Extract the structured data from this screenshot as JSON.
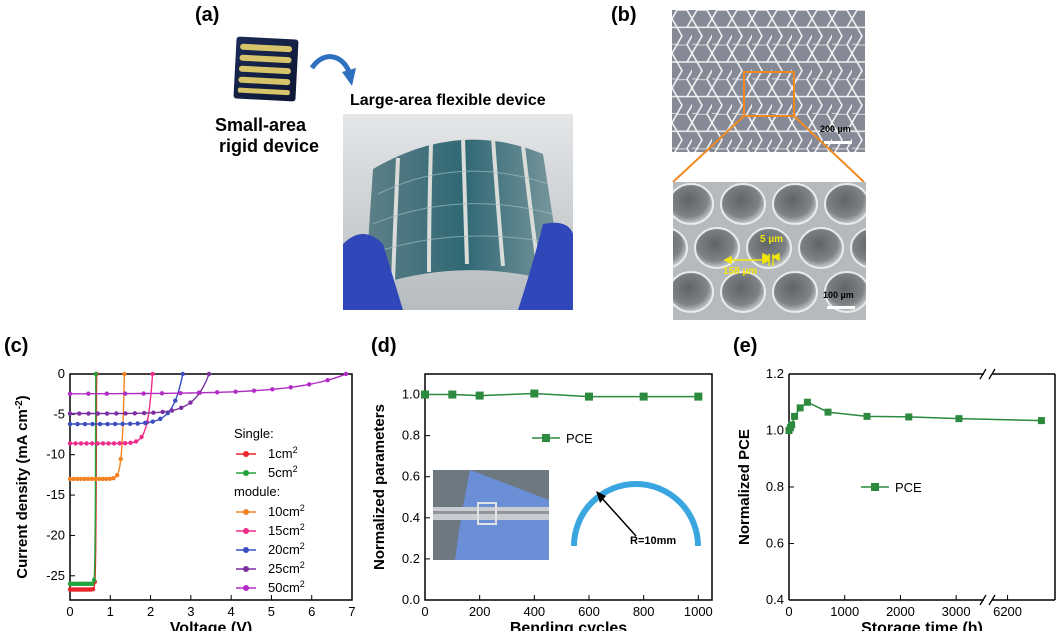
{
  "panels": {
    "a": {
      "label": "(a)",
      "small_caption_line1": "Small-area",
      "small_caption_line2": "rigid device",
      "large_caption": "Large-area flexible device"
    },
    "b": {
      "label": "(b)",
      "scale_top": "200 µm",
      "scale_bottom": "100 µm",
      "dim_gap": "5 µm",
      "dim_pitch": "158 µm"
    },
    "c": {
      "label": "(c)"
    },
    "d": {
      "label": "(d)",
      "radius_label": "R=10mm"
    },
    "e": {
      "label": "(e)"
    }
  },
  "colors": {
    "red": "#e8262b",
    "green": "#22a43a",
    "orange": "#f58220",
    "magenta": "#ee2b8a",
    "blue": "#3a4ec0",
    "purple": "#7b2fa0",
    "violet": "#b12cc4",
    "pce_green": "#2b8a3e",
    "arc_blue": "#3aa6e0"
  },
  "chart_data": [
    {
      "id": "c",
      "type": "line",
      "xlabel": "Voltage (V)",
      "ylabel": "Current density (mA cm",
      "ylabel_sup": "-2",
      "ylabel_close": ")",
      "xlim": [
        0,
        7
      ],
      "ylim": [
        -28,
        0
      ],
      "xticks": [
        0,
        1,
        2,
        3,
        4,
        5,
        6,
        7
      ],
      "yticks": [
        0,
        -5,
        -10,
        -15,
        -20,
        -25
      ],
      "legend_groups": [
        {
          "heading": "Single:",
          "entries": [
            0,
            1
          ]
        },
        {
          "heading": "module:",
          "entries": [
            2,
            3,
            4,
            5,
            6
          ]
        }
      ],
      "series": [
        {
          "name": "1cm",
          "sup": "2",
          "color_key": "red",
          "voc": 0.66,
          "jsc": -26.7,
          "n": 0.05
        },
        {
          "name": "5cm",
          "sup": "2",
          "color_key": "green",
          "voc": 0.64,
          "jsc": -26.0,
          "n": 0.042
        },
        {
          "name": "10cm",
          "sup": "2",
          "color_key": "orange",
          "voc": 1.35,
          "jsc": -13.0,
          "n": 0.1
        },
        {
          "name": "15cm",
          "sup": "2",
          "color_key": "magenta",
          "voc": 2.05,
          "jsc": -8.6,
          "n": 0.14
        },
        {
          "name": "20cm",
          "sup": "2",
          "color_key": "blue",
          "voc": 2.8,
          "jsc": -6.2,
          "n": 0.22
        },
        {
          "name": "25cm",
          "sup": "2",
          "color_key": "purple",
          "voc": 3.45,
          "jsc": -4.9,
          "n": 0.26
        },
        {
          "name": "50cm",
          "sup": "2",
          "color_key": "violet",
          "voc": 6.85,
          "jsc": -2.45,
          "n": 0.45
        }
      ]
    },
    {
      "id": "d",
      "type": "line",
      "xlabel": "Bending cycles",
      "ylabel": "Normalized parameters",
      "xlim": [
        0,
        1050
      ],
      "ylim": [
        0,
        1.1
      ],
      "xticks": [
        0,
        200,
        400,
        600,
        800,
        1000
      ],
      "yticks": [
        0.0,
        0.2,
        0.4,
        0.6,
        0.8,
        1.0
      ],
      "ytick_labels": [
        "0.0",
        "0.2",
        "0.4",
        "0.6",
        "0.8",
        "1.0"
      ],
      "legend_position": "center",
      "series": [
        {
          "name": "PCE",
          "color_key": "pce_green",
          "x": [
            0,
            100,
            200,
            400,
            600,
            800,
            1000
          ],
          "y": [
            1.0,
            1.0,
            0.995,
            1.005,
            0.99,
            0.99,
            0.99
          ]
        }
      ]
    },
    {
      "id": "e",
      "type": "line",
      "xlabel": "Storage time (h)",
      "ylabel": "Normalized PCE",
      "ylim": [
        0.4,
        1.2
      ],
      "yticks": [
        0.4,
        0.6,
        0.8,
        1.0,
        1.2
      ],
      "ytick_labels": [
        "0.4",
        "0.6",
        "0.8",
        "1.0",
        "1.2"
      ],
      "x_broken": true,
      "xticks": [
        0,
        1000,
        2000,
        3000,
        6200
      ],
      "legend_position": "center-right",
      "series": [
        {
          "name": "PCE",
          "color_key": "pce_green",
          "x": [
            0,
            24,
            48,
            100,
            200,
            330,
            700,
            1400,
            2150,
            3050,
            6700
          ],
          "y": [
            1.0,
            1.01,
            1.02,
            1.05,
            1.08,
            1.1,
            1.065,
            1.05,
            1.048,
            1.042,
            1.035
          ]
        }
      ]
    }
  ]
}
